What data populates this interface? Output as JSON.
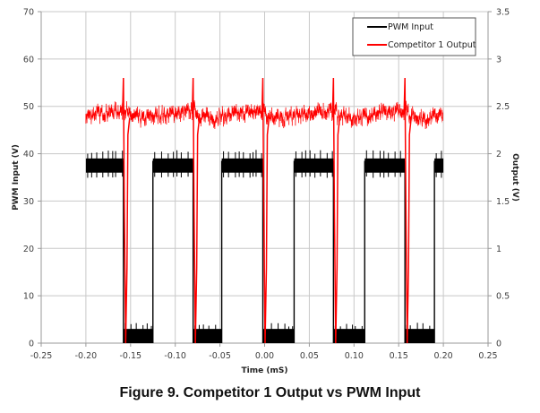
{
  "caption": "Figure 9. Competitor 1 Output vs PWM Input",
  "chart_data": {
    "type": "line",
    "title": "Figure 9. Competitor 1 Output vs PWM Input",
    "xlabel": "Time (mS)",
    "ylabel": "PWM Input (V)",
    "y2label": "Output (V)",
    "xlim": [
      -0.25,
      0.25
    ],
    "ylim": [
      0,
      70
    ],
    "y2lim": [
      0,
      3.5
    ],
    "xticks": [
      "-0.25",
      "-0.20",
      "-0.15",
      "-0.10",
      "-0.05",
      "0.00",
      "0.05",
      "0.10",
      "0.15",
      "0.20",
      "0.25"
    ],
    "yticks": [
      "0",
      "10",
      "20",
      "30",
      "40",
      "50",
      "60",
      "70"
    ],
    "y2ticks": [
      "0",
      "0.5",
      "1",
      "1.5",
      "2",
      "2.5",
      "3",
      "3.5"
    ],
    "grid": true,
    "legend_position": "upper right",
    "legend": [
      "PWM Input",
      "Competitor 1 Output"
    ],
    "series": [
      {
        "name": "PWM Input",
        "color": "#000000",
        "axis": "left",
        "description": "Square wave ~37.5 V high (noisy 36-40 V), ~1.5 V low (noisy 0-3 V); period ~0.08 mS",
        "high_level": 37.5,
        "low_level": 1.5,
        "segments": [
          {
            "level": "high",
            "x_start": -0.2,
            "x_end": -0.158
          },
          {
            "level": "low",
            "x_start": -0.158,
            "x_end": -0.125
          },
          {
            "level": "high",
            "x_start": -0.125,
            "x_end": -0.08
          },
          {
            "level": "low",
            "x_start": -0.08,
            "x_end": -0.048
          },
          {
            "level": "high",
            "x_start": -0.048,
            "x_end": -0.002
          },
          {
            "level": "low",
            "x_start": -0.002,
            "x_end": 0.033
          },
          {
            "level": "high",
            "x_start": 0.033,
            "x_end": 0.077
          },
          {
            "level": "low",
            "x_start": 0.077,
            "x_end": 0.112
          },
          {
            "level": "high",
            "x_start": 0.112,
            "x_end": 0.157
          },
          {
            "level": "low",
            "x_start": 0.157,
            "x_end": 0.19
          },
          {
            "level": "high",
            "x_start": 0.19,
            "x_end": 0.2
          }
        ]
      },
      {
        "name": "Competitor 1 Output",
        "color": "#ff0000",
        "axis": "right",
        "description": "Output ~2.35-2.45 V with ripple; spike to ~2.8 V then dip to ~0 V at each PWM falling edge",
        "baseline_range": [
          2.3,
          2.5
        ],
        "spike_peak": 2.8,
        "dip_min": 0.0,
        "spike_times": [
          -0.158,
          -0.08,
          -0.002,
          0.077,
          0.157
        ]
      }
    ]
  }
}
